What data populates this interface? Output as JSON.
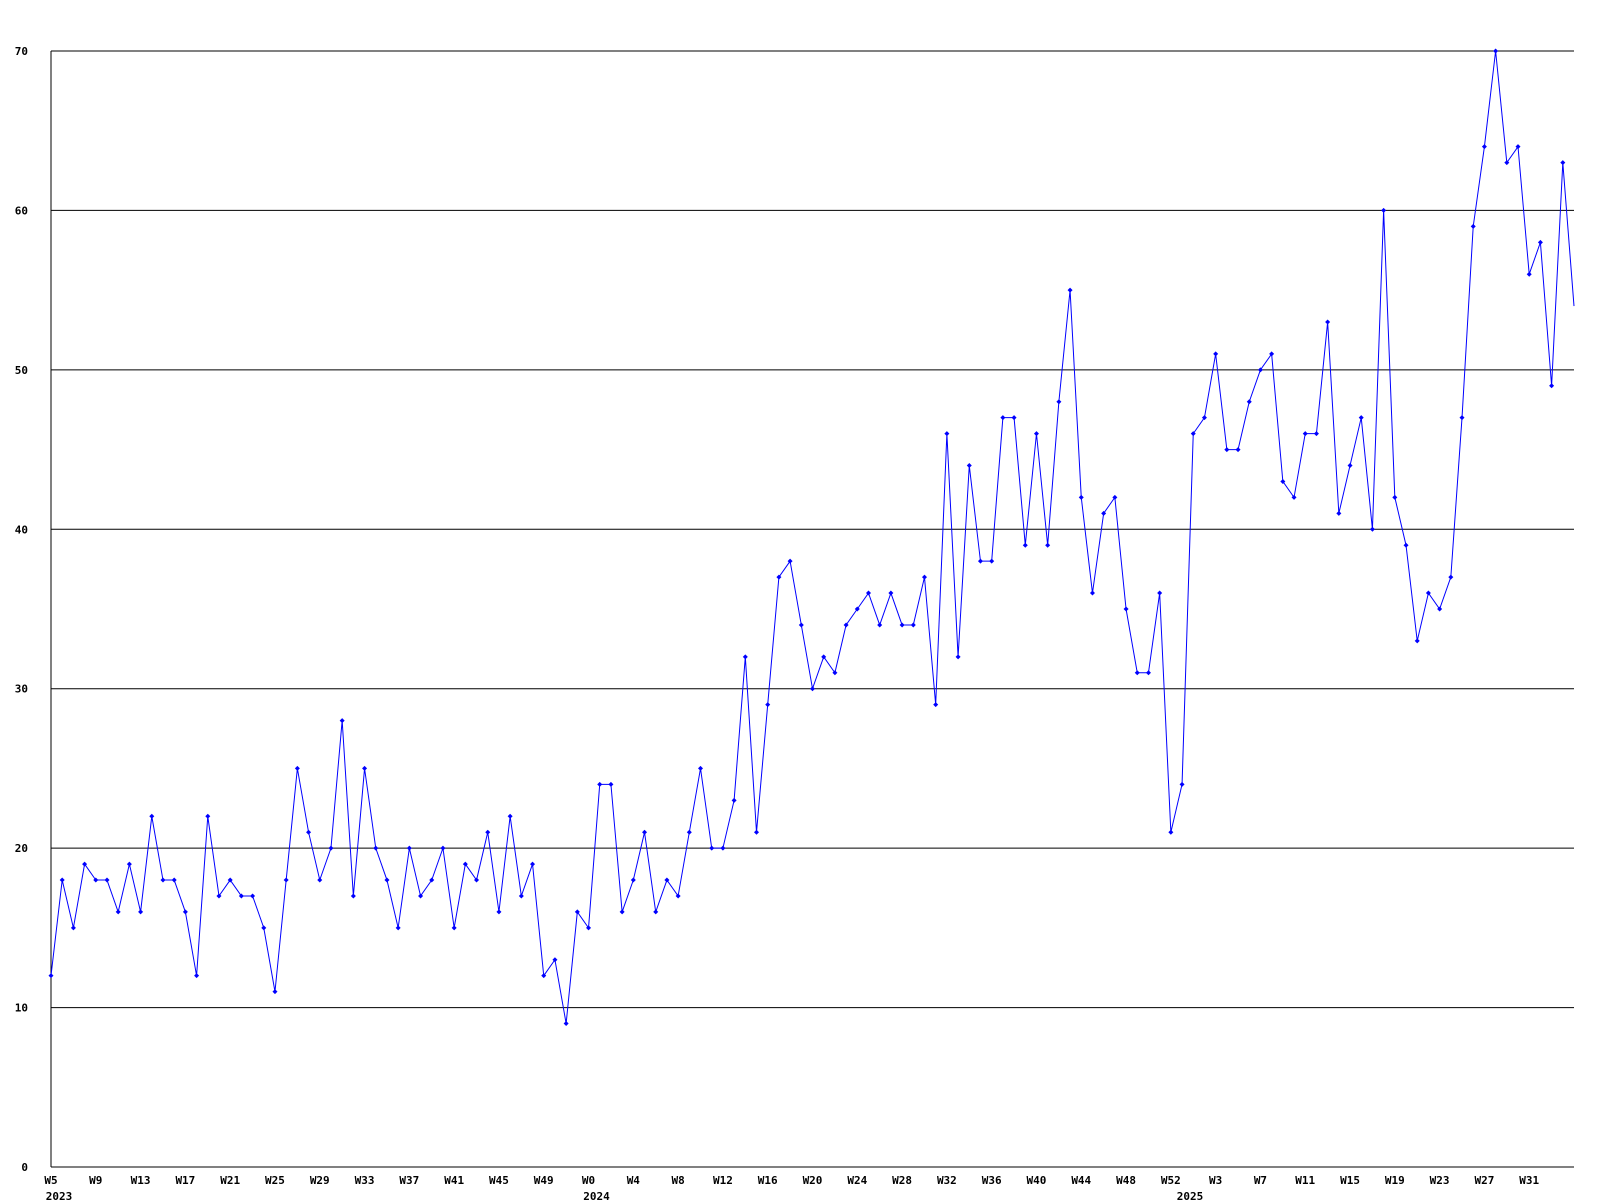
{
  "chart_data": {
    "type": "line",
    "categories": [
      "W5",
      null,
      null,
      null,
      "W9",
      null,
      null,
      null,
      "W13",
      null,
      null,
      null,
      "W17",
      null,
      null,
      null,
      "W21",
      null,
      null,
      null,
      "W25",
      null,
      null,
      null,
      "W29",
      null,
      null,
      null,
      "W33",
      null,
      null,
      null,
      "W37",
      null,
      null,
      null,
      "W41",
      null,
      null,
      null,
      "W45",
      null,
      null,
      null,
      "W49",
      null,
      null,
      null,
      "W0",
      null,
      null,
      null,
      "W4",
      null,
      null,
      null,
      "W8",
      null,
      null,
      null,
      "W12",
      null,
      null,
      null,
      "W16",
      null,
      null,
      null,
      "W20",
      null,
      null,
      null,
      "W24",
      null,
      null,
      null,
      "W28",
      null,
      null,
      null,
      "W32",
      null,
      null,
      null,
      "W36",
      null,
      null,
      null,
      "W40",
      null,
      null,
      null,
      "W44",
      null,
      null,
      null,
      "W48",
      null,
      null,
      null,
      "W52",
      null,
      null,
      null,
      "W3",
      null,
      null,
      null,
      "W7",
      null,
      null,
      null,
      "W11",
      null,
      null,
      null,
      "W15",
      null,
      null,
      null,
      "W19",
      null,
      null,
      null,
      "W23",
      null,
      null,
      null,
      "W27",
      null,
      null,
      null,
      "W31",
      null,
      null,
      null,
      null
    ],
    "category_years": [
      "2023",
      null,
      null,
      null,
      null,
      null,
      null,
      null,
      null,
      null,
      null,
      null,
      null,
      null,
      null,
      null,
      null,
      null,
      null,
      null,
      null,
      null,
      null,
      null,
      null,
      null,
      null,
      null,
      null,
      null,
      null,
      null,
      null,
      null,
      null,
      null,
      null,
      null,
      null,
      null,
      null,
      null,
      null,
      null,
      null,
      null,
      null,
      null,
      "2024",
      null,
      null,
      null,
      null,
      null,
      null,
      null,
      null,
      null,
      null,
      null,
      null,
      null,
      null,
      null,
      null,
      null,
      null,
      null,
      null,
      null,
      null,
      null,
      null,
      null,
      null,
      null,
      null,
      null,
      null,
      null,
      null,
      null,
      null,
      null,
      null,
      null,
      null,
      null,
      null,
      null,
      null,
      null,
      null,
      null,
      null,
      null,
      null,
      null,
      null,
      null,
      null,
      "2025",
      null,
      null,
      null,
      null,
      null,
      null,
      null,
      null,
      null,
      null,
      null,
      null,
      null,
      null,
      null,
      null,
      null,
      null,
      null,
      null,
      null,
      null,
      null,
      null,
      null,
      null,
      null,
      null,
      null,
      null,
      null,
      null,
      null,
      null,
      null
    ],
    "series": [
      {
        "color": "#0000ff",
        "values": [
          12,
          18,
          15,
          19,
          18,
          18,
          16,
          19,
          16,
          22,
          18,
          18,
          16,
          12,
          22,
          17,
          18,
          17,
          17,
          15,
          11,
          18,
          25,
          21,
          18,
          20,
          28,
          17,
          25,
          20,
          18,
          15,
          20,
          17,
          18,
          20,
          15,
          19,
          18,
          21,
          16,
          22,
          17,
          19,
          12,
          13,
          9,
          16,
          15,
          24,
          24,
          16,
          18,
          21,
          16,
          18,
          17,
          21,
          25,
          20,
          20,
          23,
          32,
          21,
          29,
          37,
          38,
          34,
          30,
          32,
          31,
          34,
          35,
          36,
          34,
          36,
          34,
          34,
          37,
          29,
          46,
          32,
          44,
          38,
          38,
          47,
          47,
          39,
          46,
          39,
          48,
          55,
          42,
          36,
          41,
          42,
          35,
          31,
          31,
          36,
          21,
          24,
          46,
          47,
          51,
          45,
          45,
          48,
          50,
          51,
          43,
          42,
          46,
          46,
          53,
          41,
          44,
          47,
          40,
          60,
          42,
          39,
          33,
          36,
          35,
          37,
          47,
          59,
          64,
          70,
          63,
          64,
          56,
          58,
          49,
          63,
          54
        ]
      }
    ],
    "ylim": [
      0,
      70
    ],
    "yticks": [
      0,
      10,
      20,
      30,
      40,
      50,
      60,
      70
    ],
    "grid": true
  }
}
